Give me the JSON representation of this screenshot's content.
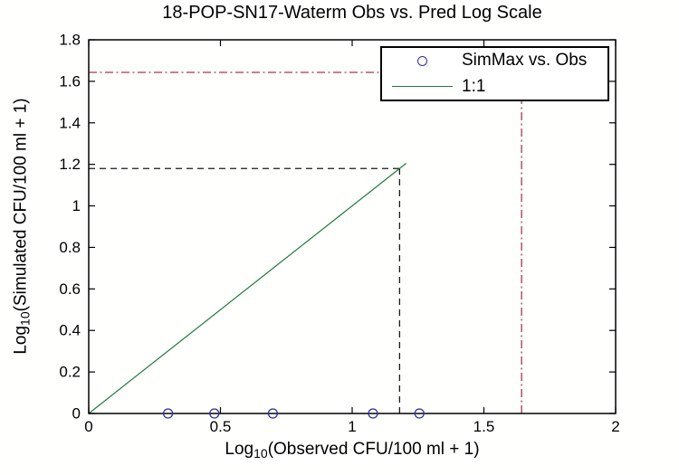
{
  "chart_data": {
    "type": "scatter",
    "title": "18-POP-SN17-Waterm Obs vs. Pred Log Scale",
    "xlabel": "Log10(Observed CFU/100 ml + 1)",
    "ylabel": "Log10(Simulated CFU/100 ml + 1)",
    "xlabel_parts": {
      "base": "Log",
      "sub": "10",
      "rest": "(Observed CFU/100 ml + 1)"
    },
    "ylabel_parts": {
      "base": "Log",
      "sub": "10",
      "rest": "(Simulated CFU/100 ml + 1)"
    },
    "xlim": [
      0,
      2
    ],
    "ylim": [
      0,
      1.8
    ],
    "xticks": {
      "values": [
        0,
        0.5,
        1,
        1.5,
        2
      ],
      "labels": [
        "0",
        "0.5",
        "1",
        "1.5",
        "2"
      ]
    },
    "yticks": {
      "values": [
        0,
        0.2,
        0.4,
        0.6,
        0.8,
        1,
        1.2,
        1.4,
        1.6,
        1.8
      ],
      "labels": [
        "0",
        "0.2",
        "0.4",
        "0.6",
        "0.8",
        "1",
        "1.2",
        "1.4",
        "1.6",
        "1.8"
      ]
    },
    "grid": false,
    "series": [
      {
        "name": "SimMax vs. Obs",
        "type": "scatter",
        "marker": "circle",
        "color": "#2F2F9E",
        "points": [
          {
            "x": 0.301,
            "y": 0
          },
          {
            "x": 0.477,
            "y": 0
          },
          {
            "x": 0.699,
            "y": 0
          },
          {
            "x": 1.079,
            "y": 0
          },
          {
            "x": 1.255,
            "y": 0
          }
        ]
      },
      {
        "name": "1:1",
        "type": "line",
        "color": "#1E7A3E",
        "x": [
          0,
          1.205
        ],
        "y": [
          0,
          1.205
        ]
      }
    ],
    "reference_lines": [
      {
        "name": "red-limit-horizontal",
        "orientation": "horizontal",
        "value": 1.643,
        "from": 0,
        "to": 1.643,
        "style": "dashdot",
        "color": "#A8354E"
      },
      {
        "name": "red-limit-vertical",
        "orientation": "vertical",
        "value": 1.643,
        "from": 0,
        "to": 1.643,
        "style": "dashdot",
        "color": "#A8354E"
      },
      {
        "name": "black-guide-horizontal",
        "orientation": "horizontal",
        "value": 1.18,
        "from": 0,
        "to": 1.18,
        "style": "dashed",
        "color": "#1a1a1a"
      },
      {
        "name": "black-guide-vertical",
        "orientation": "vertical",
        "value": 1.18,
        "from": 0,
        "to": 1.18,
        "style": "dashed",
        "color": "#1a1a1a"
      }
    ],
    "legend": {
      "position": "top-right",
      "entries": [
        {
          "label": "SimMax vs. Obs",
          "marker": "circle",
          "color": "#2F2F9E"
        },
        {
          "label": "1:1",
          "marker": "line",
          "color": "#1E7A3E"
        }
      ]
    }
  }
}
